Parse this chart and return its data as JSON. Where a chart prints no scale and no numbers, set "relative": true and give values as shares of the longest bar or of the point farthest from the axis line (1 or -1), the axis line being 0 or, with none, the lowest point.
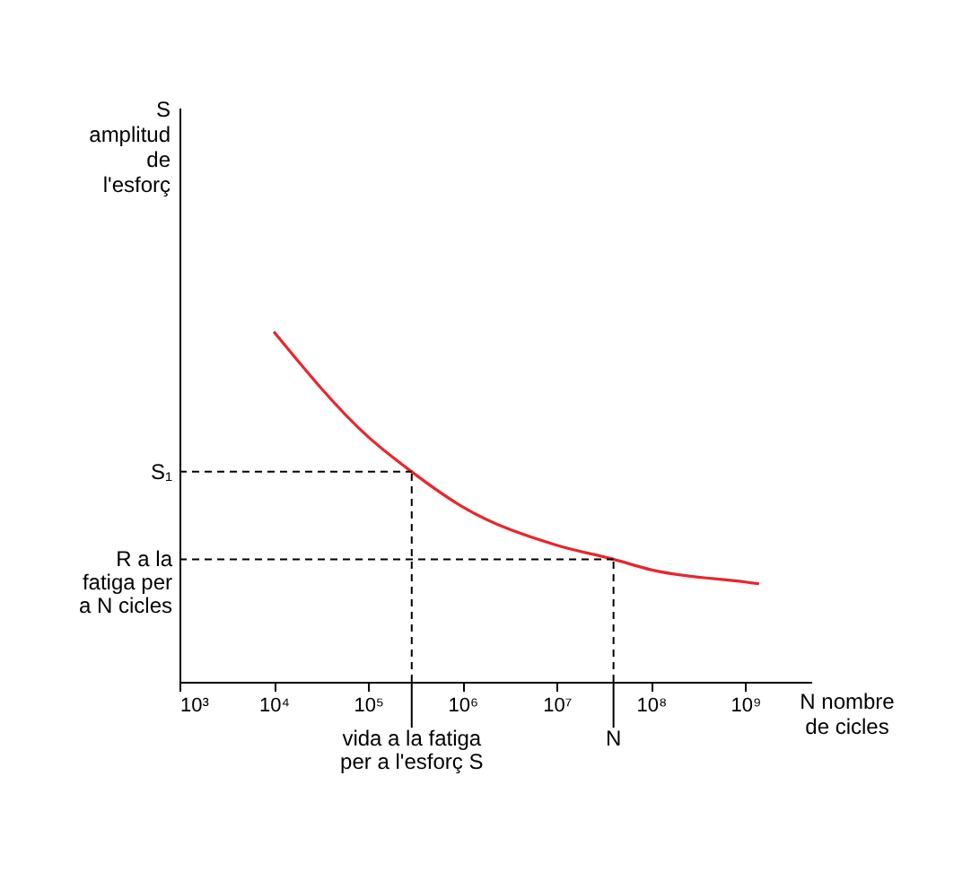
{
  "chart_data": {
    "type": "line",
    "relative": true,
    "xlabel": "N nombre de cicles",
    "annotations": [
      "S amplitud de l'esforç"
    ],
    "log": "x",
    "xlim": [
      1000,
      5000000000
    ],
    "xticks": [
      {
        "value": 1000,
        "label": "10³"
      },
      {
        "value": 10000,
        "label": "10⁴"
      },
      {
        "value": 100000,
        "label": "10⁵"
      },
      {
        "value": 1000000,
        "label": "10⁶"
      },
      {
        "value": 10000000,
        "label": "10⁷"
      },
      {
        "value": 100000000,
        "label": "10⁸"
      },
      {
        "value": 1000000000,
        "label": "10⁹"
      }
    ],
    "x": [
      10000,
      100000,
      290000,
      1000000,
      10000000,
      40000000,
      100000000,
      1000000000,
      1400000000
    ],
    "series": [
      {
        "color": "#e8262c",
        "values": [
          1.0,
          0.7,
          0.6,
          0.5,
          0.39,
          0.35,
          0.32,
          0.285,
          0.28
        ]
      }
    ],
    "ref_lines": [
      {
        "axis": "y",
        "value": 0.6,
        "label": "S₁",
        "line_style": "dashed"
      },
      {
        "axis": "y",
        "value": 0.35,
        "label": "R a la fatiga per a N cicles",
        "line_style": "dashed"
      },
      {
        "axis": "x",
        "value": 290000,
        "label": "vida a la fatiga per a l'esforç S",
        "line_style": "dashed"
      },
      {
        "axis": "x",
        "value": 40000000,
        "label": "N",
        "line_style": "dashed"
      }
    ],
    "grid": false,
    "legend": false,
    "marker": "none",
    "line_style": "solid"
  }
}
